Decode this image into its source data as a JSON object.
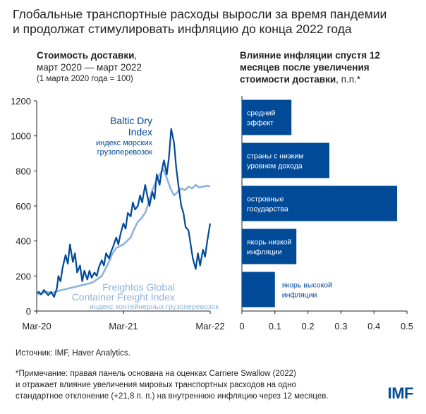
{
  "title": {
    "line1": "Глобальные транспортные расходы выросли за время пандемии",
    "line2": "и продолжат стимулировать инфляцию до конца 2022 года"
  },
  "left_panel": {
    "title_bold": "Стоимость доставки",
    "title_rest": ",",
    "line2": "март 2020 — март 2022",
    "note": "(1 марта 2020 года = 100)"
  },
  "right_panel": {
    "title_line1": "Влияние инфляции спустя 12",
    "title_line2": "месяцев после увеличения",
    "title_line3_bold": "стоимости доставки",
    "title_line3_rest": ", п.п.*"
  },
  "footer": {
    "source": "Источник: IMF, Haver Analytics.",
    "note1": "*Примечание: правая панель основана на оценках Carriere Swallow (2022)",
    "note2": "и отражает влияние увеличения мировых транспортных расходов на одно",
    "note3": "стандартное отклонение (+21,8 п. п.) на внутреннюю инфляцию через 12 месяцев.",
    "logo": "IMF"
  },
  "colors": {
    "dark_blue": "#004a98",
    "light_blue": "#8db3dc",
    "text": "#231f20",
    "axis": "#231f20"
  },
  "chart_data": [
    {
      "type": "line",
      "title": "Стоимость доставки",
      "xlabel": "",
      "ylabel": "",
      "ylim": [
        0,
        1200
      ],
      "yticks": [
        "0",
        "200",
        "400",
        "600",
        "800",
        "1000",
        "1200"
      ],
      "xticks": [
        "Mar-20",
        "Mar-21",
        "Mar-22"
      ],
      "series": [
        {
          "name": "Baltic Dry Index",
          "sublabel": "индекс морских грузоперевозок",
          "color": "#004a98",
          "x": [
            0,
            0.3,
            0.6,
            1.0,
            1.3,
            1.6,
            2.0,
            2.4,
            2.8,
            3.0,
            3.3,
            3.6,
            4.0,
            4.3,
            4.6,
            5.0,
            5.3,
            5.6,
            6.0,
            6.3,
            6.6,
            7.0,
            7.3,
            7.6,
            8.0,
            8.3,
            8.6,
            9.0,
            9.3,
            9.6,
            10.0,
            10.3,
            10.6,
            11.0,
            11.3,
            11.6,
            12.0,
            12.3,
            12.6,
            13.0,
            13.3,
            13.6,
            14.0,
            14.3,
            14.6,
            15.0,
            15.3,
            15.6,
            16.0,
            16.3,
            16.6,
            17.0,
            17.3,
            17.6,
            18.0,
            18.3,
            18.6,
            19.0,
            19.3,
            19.6,
            20.0,
            20.3,
            20.6,
            21.0,
            21.3,
            21.6,
            22.0,
            22.3,
            22.6,
            23.0,
            23.3,
            23.6,
            24.0
          ],
          "values": [
            100,
            110,
            95,
            120,
            105,
            90,
            110,
            80,
            130,
            200,
            170,
            250,
            320,
            270,
            380,
            280,
            330,
            220,
            260,
            170,
            230,
            180,
            230,
            190,
            220,
            200,
            250,
            290,
            260,
            330,
            300,
            340,
            370,
            420,
            380,
            440,
            500,
            470,
            560,
            540,
            620,
            580,
            600,
            660,
            620,
            720,
            660,
            600,
            680,
            640,
            780,
            720,
            800,
            860,
            780,
            880,
            1040,
            960,
            820,
            720,
            600,
            560,
            480,
            460,
            380,
            300,
            240,
            330,
            260,
            350,
            310,
            400,
            500
          ]
        },
        {
          "name": "Freightos Global Container Freight Index",
          "sublabel": "индекс контейнерных грузоперевозок",
          "color": "#8db3dc",
          "x": [
            0,
            0.5,
            1.0,
            1.5,
            2.0,
            2.5,
            3.0,
            3.5,
            4.0,
            4.5,
            5.0,
            5.5,
            6.0,
            6.5,
            7.0,
            7.5,
            8.0,
            8.5,
            9.0,
            9.5,
            10.0,
            10.5,
            11.0,
            11.5,
            12.0,
            12.5,
            13.0,
            13.5,
            14.0,
            14.5,
            15.0,
            15.5,
            16.0,
            16.5,
            17.0,
            17.5,
            18.0,
            18.5,
            19.0,
            19.5,
            20.0,
            20.5,
            21.0,
            21.5,
            22.0,
            22.5,
            23.0,
            23.5,
            24.0
          ],
          "values": [
            100,
            95,
            105,
            110,
            100,
            108,
            115,
            120,
            125,
            130,
            135,
            140,
            145,
            150,
            155,
            160,
            170,
            185,
            200,
            240,
            280,
            330,
            360,
            370,
            380,
            400,
            420,
            470,
            510,
            530,
            560,
            620,
            690,
            740,
            780,
            810,
            760,
            700,
            660,
            680,
            700,
            690,
            710,
            700,
            720,
            705,
            710,
            715,
            712
          ]
        }
      ]
    },
    {
      "type": "bar",
      "orientation": "horizontal",
      "title": "Влияние инфляции спустя 12 месяцев после увеличения стоимости доставки, п.п.*",
      "xlim": [
        0,
        0.5
      ],
      "xticks": [
        "0",
        "0.1",
        "0.2",
        "0.3",
        "0.4",
        "0.5"
      ],
      "categories": [
        "средний эффект",
        "страны с низким уровнем дохода",
        "островные государства",
        "якорь низкой инфляции",
        "якорь высокой инфляции"
      ],
      "category_lines": [
        [
          "средний",
          "эффект"
        ],
        [
          "страны с низким",
          "уровнем дохода"
        ],
        [
          "островные",
          "государства"
        ],
        [
          "якорь низкой",
          "инфляции"
        ],
        [
          "якорь высокой",
          "инфляции"
        ]
      ],
      "values": [
        0.15,
        0.265,
        0.47,
        0.165,
        0.1
      ],
      "color": "#004a98"
    }
  ]
}
